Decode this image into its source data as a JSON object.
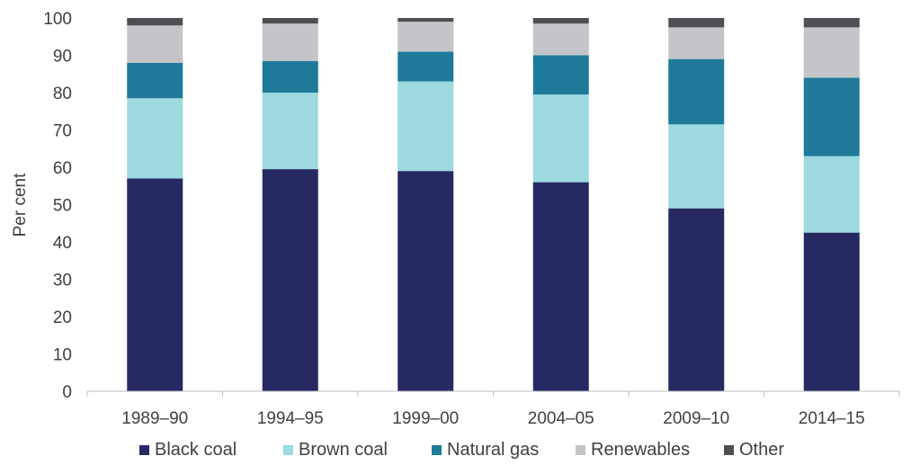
{
  "chart_data": {
    "type": "bar",
    "stacked": true,
    "title": "",
    "xlabel": "",
    "ylabel": "Per cent",
    "ylim": [
      0,
      100
    ],
    "yticks": [
      0,
      10,
      20,
      30,
      40,
      50,
      60,
      70,
      80,
      90,
      100
    ],
    "grid": false,
    "legend_position": "bottom",
    "categories": [
      "1989–90",
      "1994–95",
      "1999–00",
      "2004–05",
      "2009–10",
      "2014–15"
    ],
    "series": [
      {
        "name": "Black coal",
        "color": "#262962",
        "values": [
          57,
          59.5,
          59,
          56,
          49,
          42.5
        ]
      },
      {
        "name": "Brown coal",
        "color": "#9dd9df",
        "values": [
          21.5,
          20.5,
          24,
          23.5,
          22.5,
          20.5
        ]
      },
      {
        "name": "Natural gas",
        "color": "#1f7a9a",
        "values": [
          9.5,
          8.5,
          8,
          10.5,
          17.5,
          21
        ]
      },
      {
        "name": "Renewables",
        "color": "#c3c5c8",
        "values": [
          10,
          10,
          8,
          8.5,
          8.5,
          13.5
        ]
      },
      {
        "name": "Other",
        "color": "#4d4f53",
        "values": [
          2,
          1.5,
          1,
          1.5,
          2.5,
          2.5
        ]
      }
    ]
  }
}
